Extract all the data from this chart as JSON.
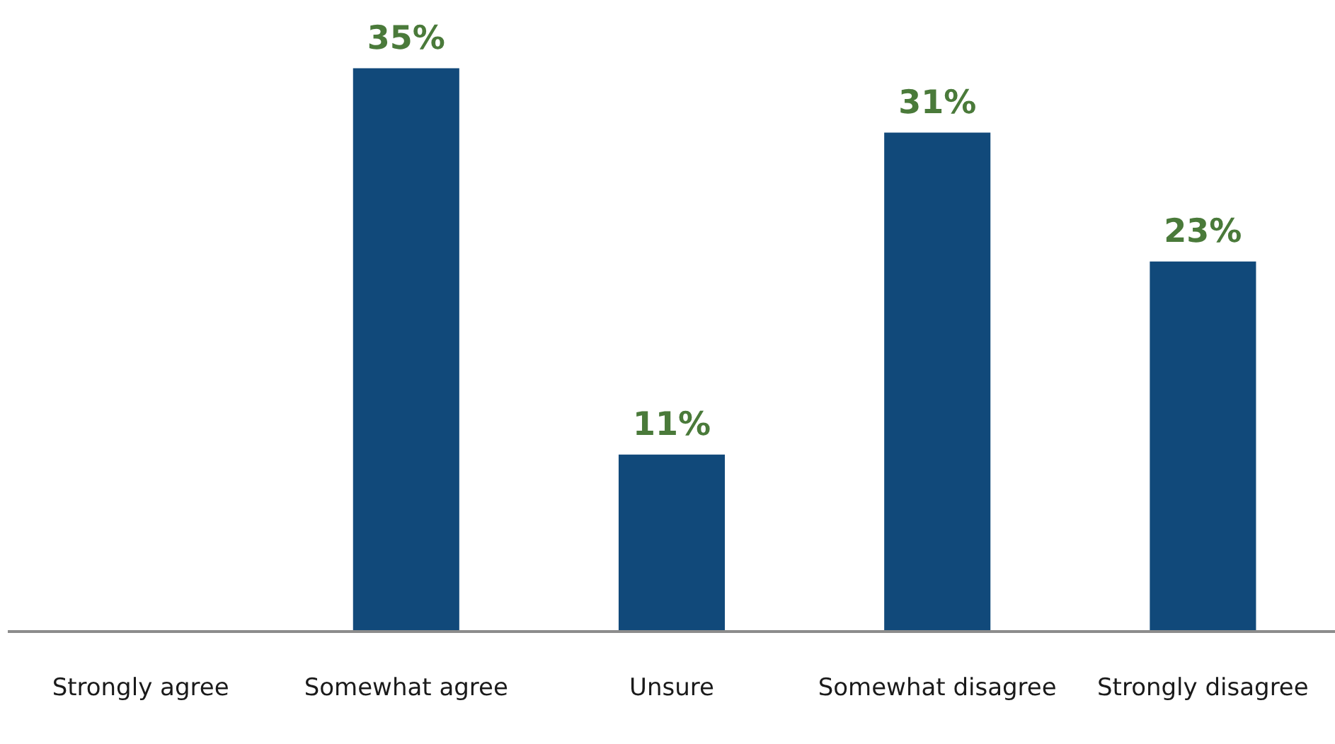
{
  "chart_data": {
    "type": "bar",
    "categories": [
      "Strongly agree",
      "Somewhat agree",
      "Unsure",
      "Somewhat disagree",
      "Strongly disagree"
    ],
    "values": [
      null,
      35,
      11,
      31,
      23
    ],
    "value_labels": [
      null,
      "35%",
      "11%",
      "31%",
      "23%"
    ],
    "color": "#11497a"
  }
}
